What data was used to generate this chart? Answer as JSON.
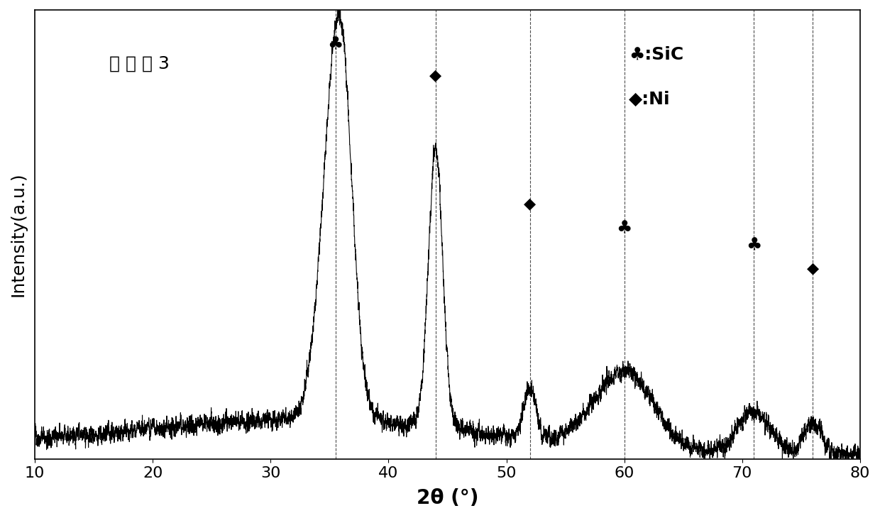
{
  "title_text": "催 化 剂 3",
  "xlabel": "2θ (°)",
  "ylabel": "Intensity(a.u.)",
  "xlim": [
    10,
    80
  ],
  "background_color": "#ffffff",
  "dashed_lines": [
    35.5,
    44.0,
    52.0,
    60.0,
    71.0,
    76.0
  ],
  "SiC_peaks": [
    35.5,
    60.0,
    71.0
  ],
  "Ni_peaks": [
    44.0,
    52.0,
    76.0
  ],
  "legend_SiC_label": "♣:SiC",
  "legend_Ni_label": "◆:Ni"
}
